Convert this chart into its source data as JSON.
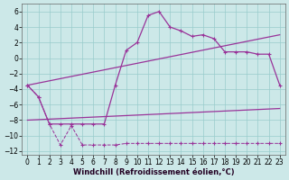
{
  "background_color": "#cce8e8",
  "grid_color": "#99cccc",
  "line_color": "#993399",
  "xlim": [
    -0.5,
    23.5
  ],
  "ylim": [
    -12.5,
    7.0
  ],
  "xlabel": "Windchill (Refroidissement éolien,°C)",
  "xlabel_fontsize": 6,
  "xtick_labels": [
    "0",
    "1",
    "2",
    "3",
    "4",
    "5",
    "6",
    "7",
    "8",
    "9",
    "10",
    "11",
    "12",
    "13",
    "14",
    "15",
    "16",
    "17",
    "18",
    "19",
    "20",
    "21",
    "22",
    "23"
  ],
  "xticks": [
    0,
    1,
    2,
    3,
    4,
    5,
    6,
    7,
    8,
    9,
    10,
    11,
    12,
    13,
    14,
    15,
    16,
    17,
    18,
    19,
    20,
    21,
    22,
    23
  ],
  "yticks": [
    -12,
    -10,
    -8,
    -6,
    -4,
    -2,
    0,
    2,
    4,
    6
  ],
  "tick_fontsize": 5.5,
  "line1_x": [
    0,
    23
  ],
  "line1_y": [
    -3.5,
    3.0
  ],
  "line2_x": [
    0,
    23
  ],
  "line2_y": [
    -8.0,
    -6.5
  ],
  "line3_x": [
    0,
    1,
    2,
    3,
    4,
    5,
    6,
    7,
    8,
    9,
    10,
    11,
    12,
    13,
    14,
    15,
    16,
    17,
    18,
    19,
    20,
    21,
    22,
    23
  ],
  "line3_y": [
    -3.5,
    -5.0,
    -8.5,
    -8.5,
    -8.5,
    -8.5,
    -8.5,
    -8.5,
    -3.5,
    1.0,
    2.0,
    5.5,
    6.0,
    4.0,
    3.5,
    2.8,
    3.0,
    2.5,
    0.8,
    0.8,
    0.8,
    0.5,
    0.5,
    -3.5
  ],
  "line4_x": [
    0,
    1,
    2,
    3,
    4,
    5,
    6,
    7,
    8,
    9,
    10,
    11,
    12,
    13,
    14,
    15,
    16,
    17,
    18,
    19,
    20,
    21,
    22,
    23
  ],
  "line4_y": [
    -3.5,
    -5.0,
    -8.5,
    -11.2,
    -8.7,
    -11.2,
    -11.2,
    -11.2,
    -11.2,
    -11.0,
    -11.0,
    -11.0,
    -11.0,
    -11.0,
    -11.0,
    -11.0,
    -11.0,
    -11.0,
    -11.0,
    -11.0,
    -11.0,
    -11.0,
    -11.0,
    -11.0
  ]
}
